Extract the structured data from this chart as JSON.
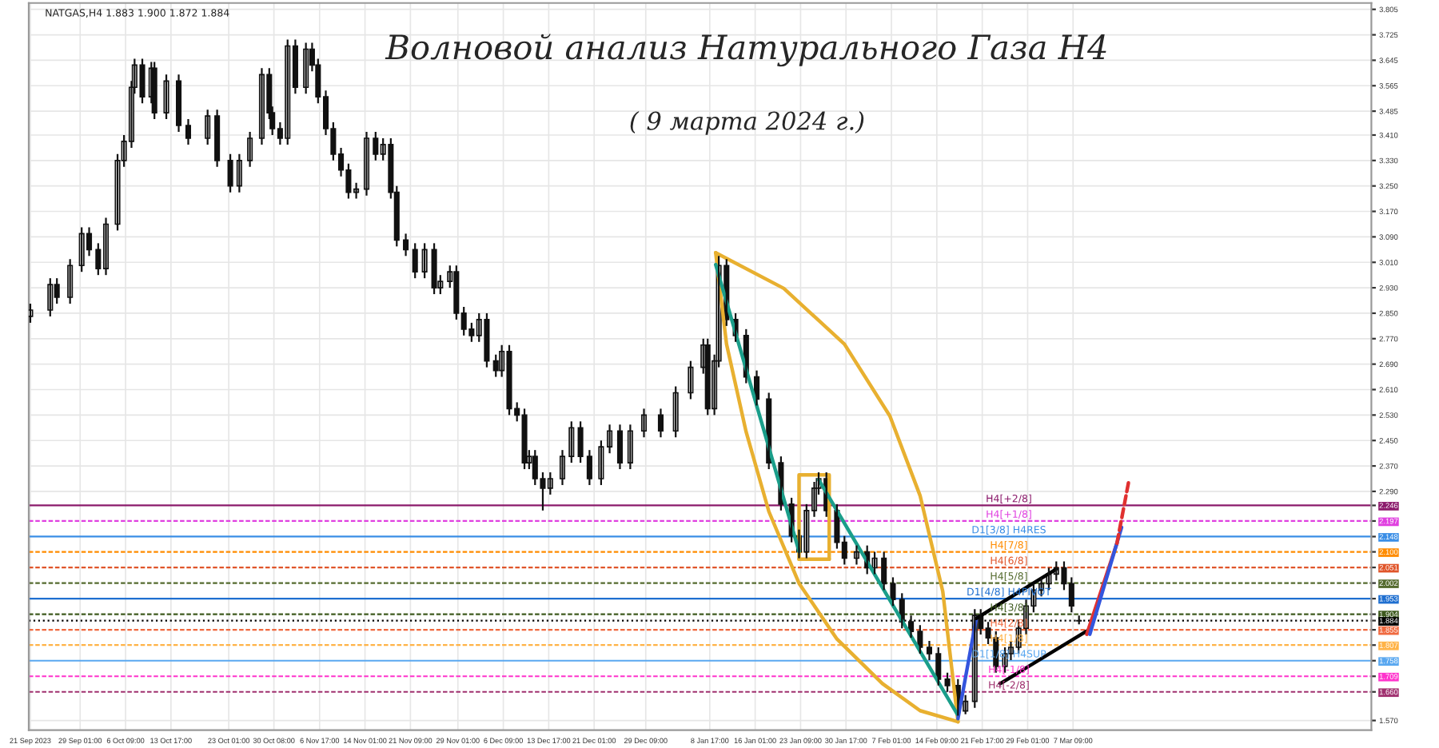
{
  "chart_data": {
    "type": "candlestick",
    "title": "Волновой анализ Натурального Газа H4",
    "subtitle": "( 9 марта 2024 г.)",
    "annotations": [
      "NATGAS,H4 1.883 1.900 1.872 1.884"
    ],
    "x": [
      "2023-09-21T00:00",
      "2023-09-24T05:00",
      "2023-09-25T07:00",
      "2023-09-27T10:00",
      "2023-09-29T07:00",
      "2023-09-30T12:00",
      "2023-10-01T23:00",
      "2023-10-03T05:00",
      "2023-10-05T02:00",
      "2023-10-06T03:00",
      "2023-10-07T08:00",
      "2023-10-07T20:00",
      "2023-10-09T02:00",
      "2023-10-10T13:00",
      "2023-10-11T01:00",
      "2023-10-12T23:00",
      "2023-10-14T23:00",
      "2023-10-16T12:00",
      "2023-10-19T15:00",
      "2023-10-21T04:00",
      "2023-10-23T07:00",
      "2023-10-24T18:00",
      "2023-10-26T11:00",
      "2023-10-28T09:00",
      "2023-10-29T14:00",
      "2023-10-30T02:00",
      "2023-10-31T08:00",
      "2023-11-01T13:00",
      "2023-11-02T19:00",
      "2023-11-04T12:00",
      "2023-11-05T12:00",
      "2023-11-06T11:00",
      "2023-11-07T17:00",
      "2023-11-08T22:00",
      "2023-11-10T04:00",
      "2023-11-11T09:00",
      "2023-11-12T15:00",
      "2023-11-14T07:00",
      "2023-11-15T18:00",
      "2023-11-16T23:00",
      "2023-11-18T05:00",
      "2023-11-19T04:00",
      "2023-11-20T15:00",
      "2023-11-22T03:00",
      "2023-11-23T16:00",
      "2023-11-25T05:00",
      "2023-11-26T05:00",
      "2023-11-27T18:00",
      "2023-11-28T19:00",
      "2023-11-30T00:00",
      "2023-12-01T06:00",
      "2023-12-02T11:00",
      "2023-12-03T17:00",
      "2023-12-05T04:00",
      "2023-12-06T03:00",
      "2023-12-07T08:00",
      "2023-12-08T14:00",
      "2023-12-09T19:00",
      "2023-12-10T13:00",
      "2023-12-11T12:00",
      "2023-12-12T18:00",
      "2023-12-13T23:00",
      "2023-12-15T22:00",
      "2023-12-17T09:00",
      "2023-12-18T20:00",
      "2023-12-20T07:00",
      "2023-12-22T04:00",
      "2023-12-23T13:00",
      "2023-12-25T05:00",
      "2023-12-26T21:00",
      "2023-12-29T02:00",
      "2023-12-31T19:00",
      "2024-01-03T05:00",
      "2024-01-05T15:00",
      "2024-01-07T16:00",
      "2024-01-08T09:00",
      "2024-01-09T11:00",
      "2024-01-10T04:00",
      "2024-01-11T10:00",
      "2024-01-12T21:00",
      "2024-01-14T14:00",
      "2024-01-16T07:00",
      "2024-01-18T06:00",
      "2024-01-20T05:00",
      "2024-01-21T22:00",
      "2024-01-23T03:00",
      "2024-01-24T08:00",
      "2024-01-25T14:00",
      "2024-01-26T07:00",
      "2024-01-27T13:00",
      "2024-01-29T06:00",
      "2024-01-30T11:00",
      "2024-02-01T10:00",
      "2024-02-03T03:00",
      "2024-02-04T08:00",
      "2024-02-05T20:00",
      "2024-02-07T07:00",
      "2024-02-08T18:00",
      "2024-02-10T05:00",
      "2024-02-11T16:00",
      "2024-02-13T04:00",
      "2024-02-14T15:00",
      "2024-02-16T02:00",
      "2024-02-17T19:00",
      "2024-02-19T00:00",
      "2024-02-20T12:00",
      "2024-02-21T11:00",
      "2024-02-22T16:00",
      "2024-02-23T22:00",
      "2024-02-25T09:00",
      "2024-02-26T08:00",
      "2024-02-27T14:00",
      "2024-02-28T19:00",
      "2024-03-01T00:00",
      "2024-03-02T06:00",
      "2024-03-03T11:00",
      "2024-03-04T16:00",
      "2024-03-05T22:00",
      "2024-03-07T03:00",
      "2024-03-08T08:00"
    ],
    "ohlc": [
      [
        2.84,
        2.88,
        2.82,
        2.86
      ],
      [
        2.86,
        2.96,
        2.84,
        2.94
      ],
      [
        2.94,
        2.96,
        2.88,
        2.9
      ],
      [
        2.9,
        3.02,
        2.88,
        3.0
      ],
      [
        3.0,
        3.12,
        2.98,
        3.1
      ],
      [
        3.1,
        3.12,
        3.03,
        3.05
      ],
      [
        3.05,
        3.07,
        2.97,
        2.99
      ],
      [
        2.99,
        3.15,
        2.97,
        3.13
      ],
      [
        3.13,
        3.35,
        3.11,
        3.33
      ],
      [
        3.33,
        3.41,
        3.31,
        3.39
      ],
      [
        3.39,
        3.58,
        3.37,
        3.56
      ],
      [
        3.56,
        3.65,
        3.54,
        3.63
      ],
      [
        3.63,
        3.65,
        3.51,
        3.53
      ],
      [
        3.53,
        3.64,
        3.51,
        3.62
      ],
      [
        3.62,
        3.64,
        3.46,
        3.48
      ],
      [
        3.48,
        3.6,
        3.46,
        3.58
      ],
      [
        3.58,
        3.6,
        3.42,
        3.44
      ],
      [
        3.44,
        3.46,
        3.38,
        3.4
      ],
      [
        3.4,
        3.49,
        3.38,
        3.47
      ],
      [
        3.47,
        3.49,
        3.31,
        3.33
      ],
      [
        3.33,
        3.35,
        3.23,
        3.25
      ],
      [
        3.25,
        3.35,
        3.23,
        3.33
      ],
      [
        3.33,
        3.42,
        3.31,
        3.4
      ],
      [
        3.4,
        3.62,
        3.38,
        3.6
      ],
      [
        3.6,
        3.62,
        3.46,
        3.48
      ],
      [
        3.48,
        3.5,
        3.41,
        3.43
      ],
      [
        3.43,
        3.45,
        3.38,
        3.4
      ],
      [
        3.4,
        3.71,
        3.38,
        3.69
      ],
      [
        3.69,
        3.71,
        3.54,
        3.56
      ],
      [
        3.56,
        3.7,
        3.54,
        3.68
      ],
      [
        3.68,
        3.7,
        3.61,
        3.63
      ],
      [
        3.63,
        3.65,
        3.51,
        3.53
      ],
      [
        3.53,
        3.55,
        3.41,
        3.43
      ],
      [
        3.43,
        3.45,
        3.33,
        3.35
      ],
      [
        3.35,
        3.37,
        3.28,
        3.3
      ],
      [
        3.3,
        3.32,
        3.21,
        3.23
      ],
      [
        3.23,
        3.26,
        3.21,
        3.24
      ],
      [
        3.24,
        3.42,
        3.22,
        3.4
      ],
      [
        3.4,
        3.42,
        3.33,
        3.35
      ],
      [
        3.35,
        3.4,
        3.33,
        3.38
      ],
      [
        3.38,
        3.4,
        3.21,
        3.23
      ],
      [
        3.23,
        3.25,
        3.06,
        3.08
      ],
      [
        3.08,
        3.1,
        3.03,
        3.05
      ],
      [
        3.05,
        3.07,
        2.96,
        2.98
      ],
      [
        2.98,
        3.07,
        2.96,
        3.05
      ],
      [
        3.05,
        3.07,
        2.91,
        2.93
      ],
      [
        2.93,
        2.97,
        2.91,
        2.95
      ],
      [
        2.95,
        3.0,
        2.93,
        2.98
      ],
      [
        2.98,
        3.0,
        2.83,
        2.85
      ],
      [
        2.85,
        2.87,
        2.78,
        2.8
      ],
      [
        2.8,
        2.82,
        2.76,
        2.78
      ],
      [
        2.78,
        2.85,
        2.76,
        2.83
      ],
      [
        2.83,
        2.85,
        2.68,
        2.7
      ],
      [
        2.7,
        2.72,
        2.65,
        2.67
      ],
      [
        2.67,
        2.75,
        2.65,
        2.73
      ],
      [
        2.73,
        2.75,
        2.53,
        2.55
      ],
      [
        2.55,
        2.57,
        2.51,
        2.53
      ],
      [
        2.53,
        2.55,
        2.36,
        2.38
      ],
      [
        2.38,
        2.42,
        2.36,
        2.4
      ],
      [
        2.4,
        2.42,
        2.31,
        2.33
      ],
      [
        2.33,
        2.35,
        2.23,
        2.3
      ],
      [
        2.3,
        2.35,
        2.28,
        2.33
      ],
      [
        2.33,
        2.42,
        2.31,
        2.4
      ],
      [
        2.4,
        2.51,
        2.38,
        2.49
      ],
      [
        2.49,
        2.51,
        2.38,
        2.4
      ],
      [
        2.4,
        2.42,
        2.31,
        2.33
      ],
      [
        2.33,
        2.45,
        2.31,
        2.43
      ],
      [
        2.43,
        2.5,
        2.41,
        2.48
      ],
      [
        2.48,
        2.5,
        2.36,
        2.38
      ],
      [
        2.38,
        2.5,
        2.36,
        2.48
      ],
      [
        2.48,
        2.55,
        2.46,
        2.53
      ],
      [
        2.53,
        2.55,
        2.46,
        2.48
      ],
      [
        2.48,
        2.62,
        2.46,
        2.6
      ],
      [
        2.6,
        2.7,
        2.58,
        2.68
      ],
      [
        2.68,
        2.77,
        2.66,
        2.75
      ],
      [
        2.75,
        2.77,
        2.53,
        2.55
      ],
      [
        2.55,
        2.72,
        2.53,
        2.7
      ],
      [
        2.7,
        3.03,
        2.68,
        3.0
      ],
      [
        3.0,
        3.02,
        2.81,
        2.83
      ],
      [
        2.83,
        2.85,
        2.76,
        2.78
      ],
      [
        2.78,
        2.8,
        2.63,
        2.65
      ],
      [
        2.65,
        2.67,
        2.56,
        2.58
      ],
      [
        2.58,
        2.6,
        2.36,
        2.38
      ],
      [
        2.38,
        2.4,
        2.23,
        2.25
      ],
      [
        2.25,
        2.27,
        2.13,
        2.15
      ],
      [
        2.15,
        2.17,
        2.08,
        2.1
      ],
      [
        2.1,
        2.25,
        2.08,
        2.23
      ],
      [
        2.23,
        2.32,
        2.21,
        2.3
      ],
      [
        2.3,
        2.35,
        2.28,
        2.33
      ],
      [
        2.33,
        2.35,
        2.21,
        2.23
      ],
      [
        2.23,
        2.25,
        2.11,
        2.13
      ],
      [
        2.13,
        2.15,
        2.06,
        2.08
      ],
      [
        2.08,
        2.12,
        2.06,
        2.1
      ],
      [
        2.1,
        2.12,
        2.03,
        2.05
      ],
      [
        2.05,
        2.1,
        2.03,
        2.08
      ],
      [
        2.08,
        2.1,
        1.98,
        2.0
      ],
      [
        2.0,
        2.02,
        1.93,
        1.95
      ],
      [
        1.95,
        1.97,
        1.86,
        1.88
      ],
      [
        1.88,
        1.9,
        1.83,
        1.85
      ],
      [
        1.85,
        1.87,
        1.78,
        1.8
      ],
      [
        1.8,
        1.82,
        1.76,
        1.78
      ],
      [
        1.78,
        1.8,
        1.68,
        1.7
      ],
      [
        1.7,
        1.72,
        1.66,
        1.68
      ],
      [
        1.68,
        1.7,
        1.585,
        1.6
      ],
      [
        1.6,
        1.65,
        1.59,
        1.63
      ],
      [
        1.63,
        1.92,
        1.61,
        1.9
      ],
      [
        1.9,
        1.92,
        1.84,
        1.86
      ],
      [
        1.86,
        1.88,
        1.81,
        1.83
      ],
      [
        1.83,
        1.85,
        1.72,
        1.74
      ],
      [
        1.74,
        1.8,
        1.72,
        1.78
      ],
      [
        1.78,
        1.82,
        1.76,
        1.8
      ],
      [
        1.8,
        1.88,
        1.78,
        1.86
      ],
      [
        1.86,
        1.95,
        1.84,
        1.93
      ],
      [
        1.93,
        2.0,
        1.91,
        1.98
      ],
      [
        1.98,
        2.02,
        1.96,
        2.0
      ],
      [
        2.0,
        2.05,
        1.98,
        2.03
      ],
      [
        2.03,
        2.07,
        2.01,
        2.05
      ],
      [
        2.05,
        2.07,
        1.98,
        2.0
      ],
      [
        2.0,
        2.02,
        1.91,
        1.93
      ],
      [
        1.883,
        1.9,
        1.872,
        1.884
      ]
    ],
    "xlim": [
      "2023-09-20T18:00",
      "2024-04-24T13:00"
    ],
    "xticks": [
      {
        "value": "2023-09-21T00:00",
        "label": "21 Sep 2023"
      },
      {
        "value": "2023-09-29T01:00",
        "label": "29 Sep 01:00"
      },
      {
        "value": "2023-10-06T09:00",
        "label": "6 Oct 09:00"
      },
      {
        "value": "2023-10-13T17:00",
        "label": "13 Oct 17:00"
      },
      {
        "value": "2023-10-23T01:00",
        "label": "23 Oct 01:00"
      },
      {
        "value": "2023-10-30T08:00",
        "label": "30 Oct 08:00"
      },
      {
        "value": "2023-11-06T17:00",
        "label": "6 Nov 17:00"
      },
      {
        "value": "2023-11-14T01:00",
        "label": "14 Nov 01:00"
      },
      {
        "value": "2023-11-21T09:00",
        "label": "21 Nov 09:00"
      },
      {
        "value": "2023-11-29T01:00",
        "label": "29 Nov 01:00"
      },
      {
        "value": "2023-12-06T09:00",
        "label": "6 Dec 09:00"
      },
      {
        "value": "2023-12-13T17:00",
        "label": "13 Dec 17:00"
      },
      {
        "value": "2023-12-21T01:00",
        "label": "21 Dec 01:00"
      },
      {
        "value": "2023-12-29T09:00",
        "label": "29 Dec 09:00"
      },
      {
        "value": "2024-01-08T17:00",
        "label": "8 Jan 17:00"
      },
      {
        "value": "2024-01-16T01:00",
        "label": "16 Jan 01:00"
      },
      {
        "value": "2024-01-23T09:00",
        "label": "23 Jan 09:00"
      },
      {
        "value": "2024-01-30T17:00",
        "label": "30 Jan 17:00"
      },
      {
        "value": "2024-02-07T01:00",
        "label": "7 Feb 01:00"
      },
      {
        "value": "2024-02-14T09:00",
        "label": "14 Feb 09:00"
      },
      {
        "value": "2024-02-21T17:00",
        "label": "21 Feb 17:00"
      },
      {
        "value": "2024-02-29T01:00",
        "label": "29 Feb 01:00"
      },
      {
        "value": "2024-03-07T09:00",
        "label": "7 Mar 09:00"
      }
    ],
    "ylim": [
      1.54,
      3.825
    ],
    "yticks": [
      {
        "value": 3.805,
        "label": "3.805"
      },
      {
        "value": 3.725,
        "label": "3.725"
      },
      {
        "value": 3.645,
        "label": "3.645"
      },
      {
        "value": 3.565,
        "label": "3.565"
      },
      {
        "value": 3.485,
        "label": "3.485"
      },
      {
        "value": 3.41,
        "label": "3.410"
      },
      {
        "value": 3.33,
        "label": "3.330"
      },
      {
        "value": 3.25,
        "label": "3.250"
      },
      {
        "value": 3.17,
        "label": "3.170"
      },
      {
        "value": 3.09,
        "label": "3.090"
      },
      {
        "value": 3.01,
        "label": "3.010"
      },
      {
        "value": 2.93,
        "label": "2.930"
      },
      {
        "value": 2.85,
        "label": "2.850"
      },
      {
        "value": 2.77,
        "label": "2.770"
      },
      {
        "value": 2.69,
        "label": "2.690"
      },
      {
        "value": 2.61,
        "label": "2.610"
      },
      {
        "value": 2.53,
        "label": "2.530"
      },
      {
        "value": 2.45,
        "label": "2.450"
      },
      {
        "value": 2.37,
        "label": "2.370"
      },
      {
        "value": 2.29,
        "label": "2.290"
      },
      {
        "value": 2.246,
        "label": "2.246"
      },
      {
        "value": 2.197,
        "label": "2.197"
      },
      {
        "value": 2.148,
        "label": "2.148"
      },
      {
        "value": 2.1,
        "label": "2.100"
      },
      {
        "value": 2.051,
        "label": "2.051"
      },
      {
        "value": 2.002,
        "label": "2.002"
      },
      {
        "value": 1.953,
        "label": "1.953"
      },
      {
        "value": 1.904,
        "label": "1.904"
      },
      {
        "value": 1.884,
        "label": "1.884"
      },
      {
        "value": 1.855,
        "label": "1.855"
      },
      {
        "value": 1.807,
        "label": "1.807"
      },
      {
        "value": 1.758,
        "label": "1.758"
      },
      {
        "value": 1.709,
        "label": "1.709"
      },
      {
        "value": 1.66,
        "label": "1.660"
      },
      {
        "value": 1.57,
        "label": "1.570"
      }
    ],
    "grid": true,
    "ref_lines": [
      {
        "axis": "y",
        "value": 2.246,
        "label": "H4[+2/8]",
        "color": "#8b1a6b",
        "line_style": "solid"
      },
      {
        "axis": "y",
        "value": 2.197,
        "label": "H4[+1/8]",
        "color": "#e040e0",
        "line_style": "dashed"
      },
      {
        "axis": "y",
        "value": 2.148,
        "label": "D1[3/8] H4RES",
        "color": "#3a8ee6",
        "line_style": "solid"
      },
      {
        "axis": "y",
        "value": 2.1,
        "label": "H4[7/8]",
        "color": "#ff8c00",
        "line_style": "dashed"
      },
      {
        "axis": "y",
        "value": 2.051,
        "label": "H4[6/8]",
        "color": "#e0552a",
        "line_style": "dashed"
      },
      {
        "axis": "y",
        "value": 2.002,
        "label": "H4[5/8]",
        "color": "#556b2f",
        "line_style": "dashed"
      },
      {
        "axis": "y",
        "value": 1.953,
        "label": "D1[4/8] H4PIVOT",
        "color": "#1f6fd0",
        "line_style": "solid"
      },
      {
        "axis": "y",
        "value": 1.904,
        "label": "H4[3/8]",
        "color": "#3e5a1e",
        "line_style": "dashed"
      },
      {
        "axis": "y",
        "value": 1.884,
        "label": null,
        "color": "#000000",
        "line_style": "dotted"
      },
      {
        "axis": "y",
        "value": 1.855,
        "label": "H4[2/8]",
        "color": "#f06a40",
        "line_style": "dashed"
      },
      {
        "axis": "y",
        "value": 1.807,
        "label": "H4[1/8]",
        "color": "#ffb347",
        "line_style": "dashed"
      },
      {
        "axis": "y",
        "value": 1.758,
        "label": "D1[1/8] H4SUP",
        "color": "#5aa8f0",
        "line_style": "solid"
      },
      {
        "axis": "y",
        "value": 1.709,
        "label": "H4[-1/8]",
        "color": "#ff33cc",
        "line_style": "dashed"
      },
      {
        "axis": "y",
        "value": 1.66,
        "label": "H4[-2/8]",
        "color": "#a0306f",
        "line_style": "dashed"
      }
    ],
    "series": [
      {
        "type": "line",
        "color": "#e8b030",
        "line_style": "solid",
        "x": [
          "2024-01-09T16:00",
          "2024-01-11T10:00",
          "2024-01-14T14:00",
          "2024-01-18T06:00",
          "2024-01-23T03:00",
          "2024-01-29T06:00",
          "2024-02-05T14:00",
          "2024-02-11T16:00",
          "2024-02-17T19:00"
        ],
        "values": [
          3.04,
          2.753,
          2.477,
          2.227,
          2.001,
          1.826,
          1.686,
          1.601,
          1.566
        ]
      },
      {
        "type": "line",
        "color": "#e8b030",
        "line_style": "solid",
        "x": [
          "2024-01-09T16:00",
          "2024-01-20T16:00",
          "2024-01-30T11:00",
          "2024-02-06T19:00",
          "2024-02-11T16:00",
          "2024-02-15T08:00",
          "2024-02-17T19:00"
        ],
        "values": [
          3.04,
          2.928,
          2.753,
          2.527,
          2.277,
          1.976,
          1.566
        ]
      },
      {
        "type": "line",
        "color": "#e8b030",
        "line_style": "solid",
        "x": [
          "2024-01-23T03:00",
          "2024-01-23T03:00",
          "2024-01-28T00:00",
          "2024-01-28T00:00"
        ],
        "values": [
          2.077,
          2.342,
          2.342,
          2.077
        ]
      },
      {
        "type": "line",
        "color": "#e8b030",
        "line_style": "solid",
        "x": [
          "2024-01-23T03:00",
          "2024-01-28T00:00"
        ],
        "values": [
          2.077,
          2.077
        ]
      },
      {
        "type": "line",
        "color": "#1a9e8a",
        "line_style": "solid",
        "x": [
          "2024-01-09T16:00",
          "2024-01-23T03:00"
        ],
        "values": [
          3.003,
          2.102
        ]
      },
      {
        "type": "line",
        "color": "#1a9e8a",
        "line_style": "solid",
        "x": [
          "2024-01-26T07:00",
          "2024-02-17T19:00"
        ],
        "values": [
          2.327,
          1.586
        ]
      },
      {
        "type": "line",
        "color": "#3355dd",
        "line_style": "solid",
        "x": [
          "2024-02-17T19:00",
          "2024-02-20T18:00"
        ],
        "values": [
          1.576,
          1.891
        ]
      },
      {
        "type": "line",
        "color": "#000000",
        "line_style": "solid",
        "x": [
          "2024-02-20T18:00",
          "2024-03-04T16:00"
        ],
        "values": [
          1.891,
          2.046
        ]
      },
      {
        "type": "line",
        "color": "#000000",
        "line_style": "solid",
        "x": [
          "2024-02-24T15:00",
          "2024-03-09T14:00"
        ],
        "values": [
          1.686,
          1.851
        ]
      },
      {
        "type": "line",
        "color": "#e03030",
        "line_style": "solid",
        "x": [
          "2024-03-09T14:00",
          "2024-03-14T11:00"
        ],
        "values": [
          1.841,
          2.127
        ]
      },
      {
        "type": "line",
        "color": "#e03030",
        "line_style": "dashed",
        "x": [
          "2024-03-14T11:00",
          "2024-03-16T10:00"
        ],
        "values": [
          2.127,
          2.327
        ]
      },
      {
        "type": "line",
        "color": "#3355dd",
        "line_style": "solid",
        "x": [
          "2024-03-10T02:00",
          "2024-03-15T05:00"
        ],
        "values": [
          1.841,
          2.177
        ]
      }
    ]
  }
}
